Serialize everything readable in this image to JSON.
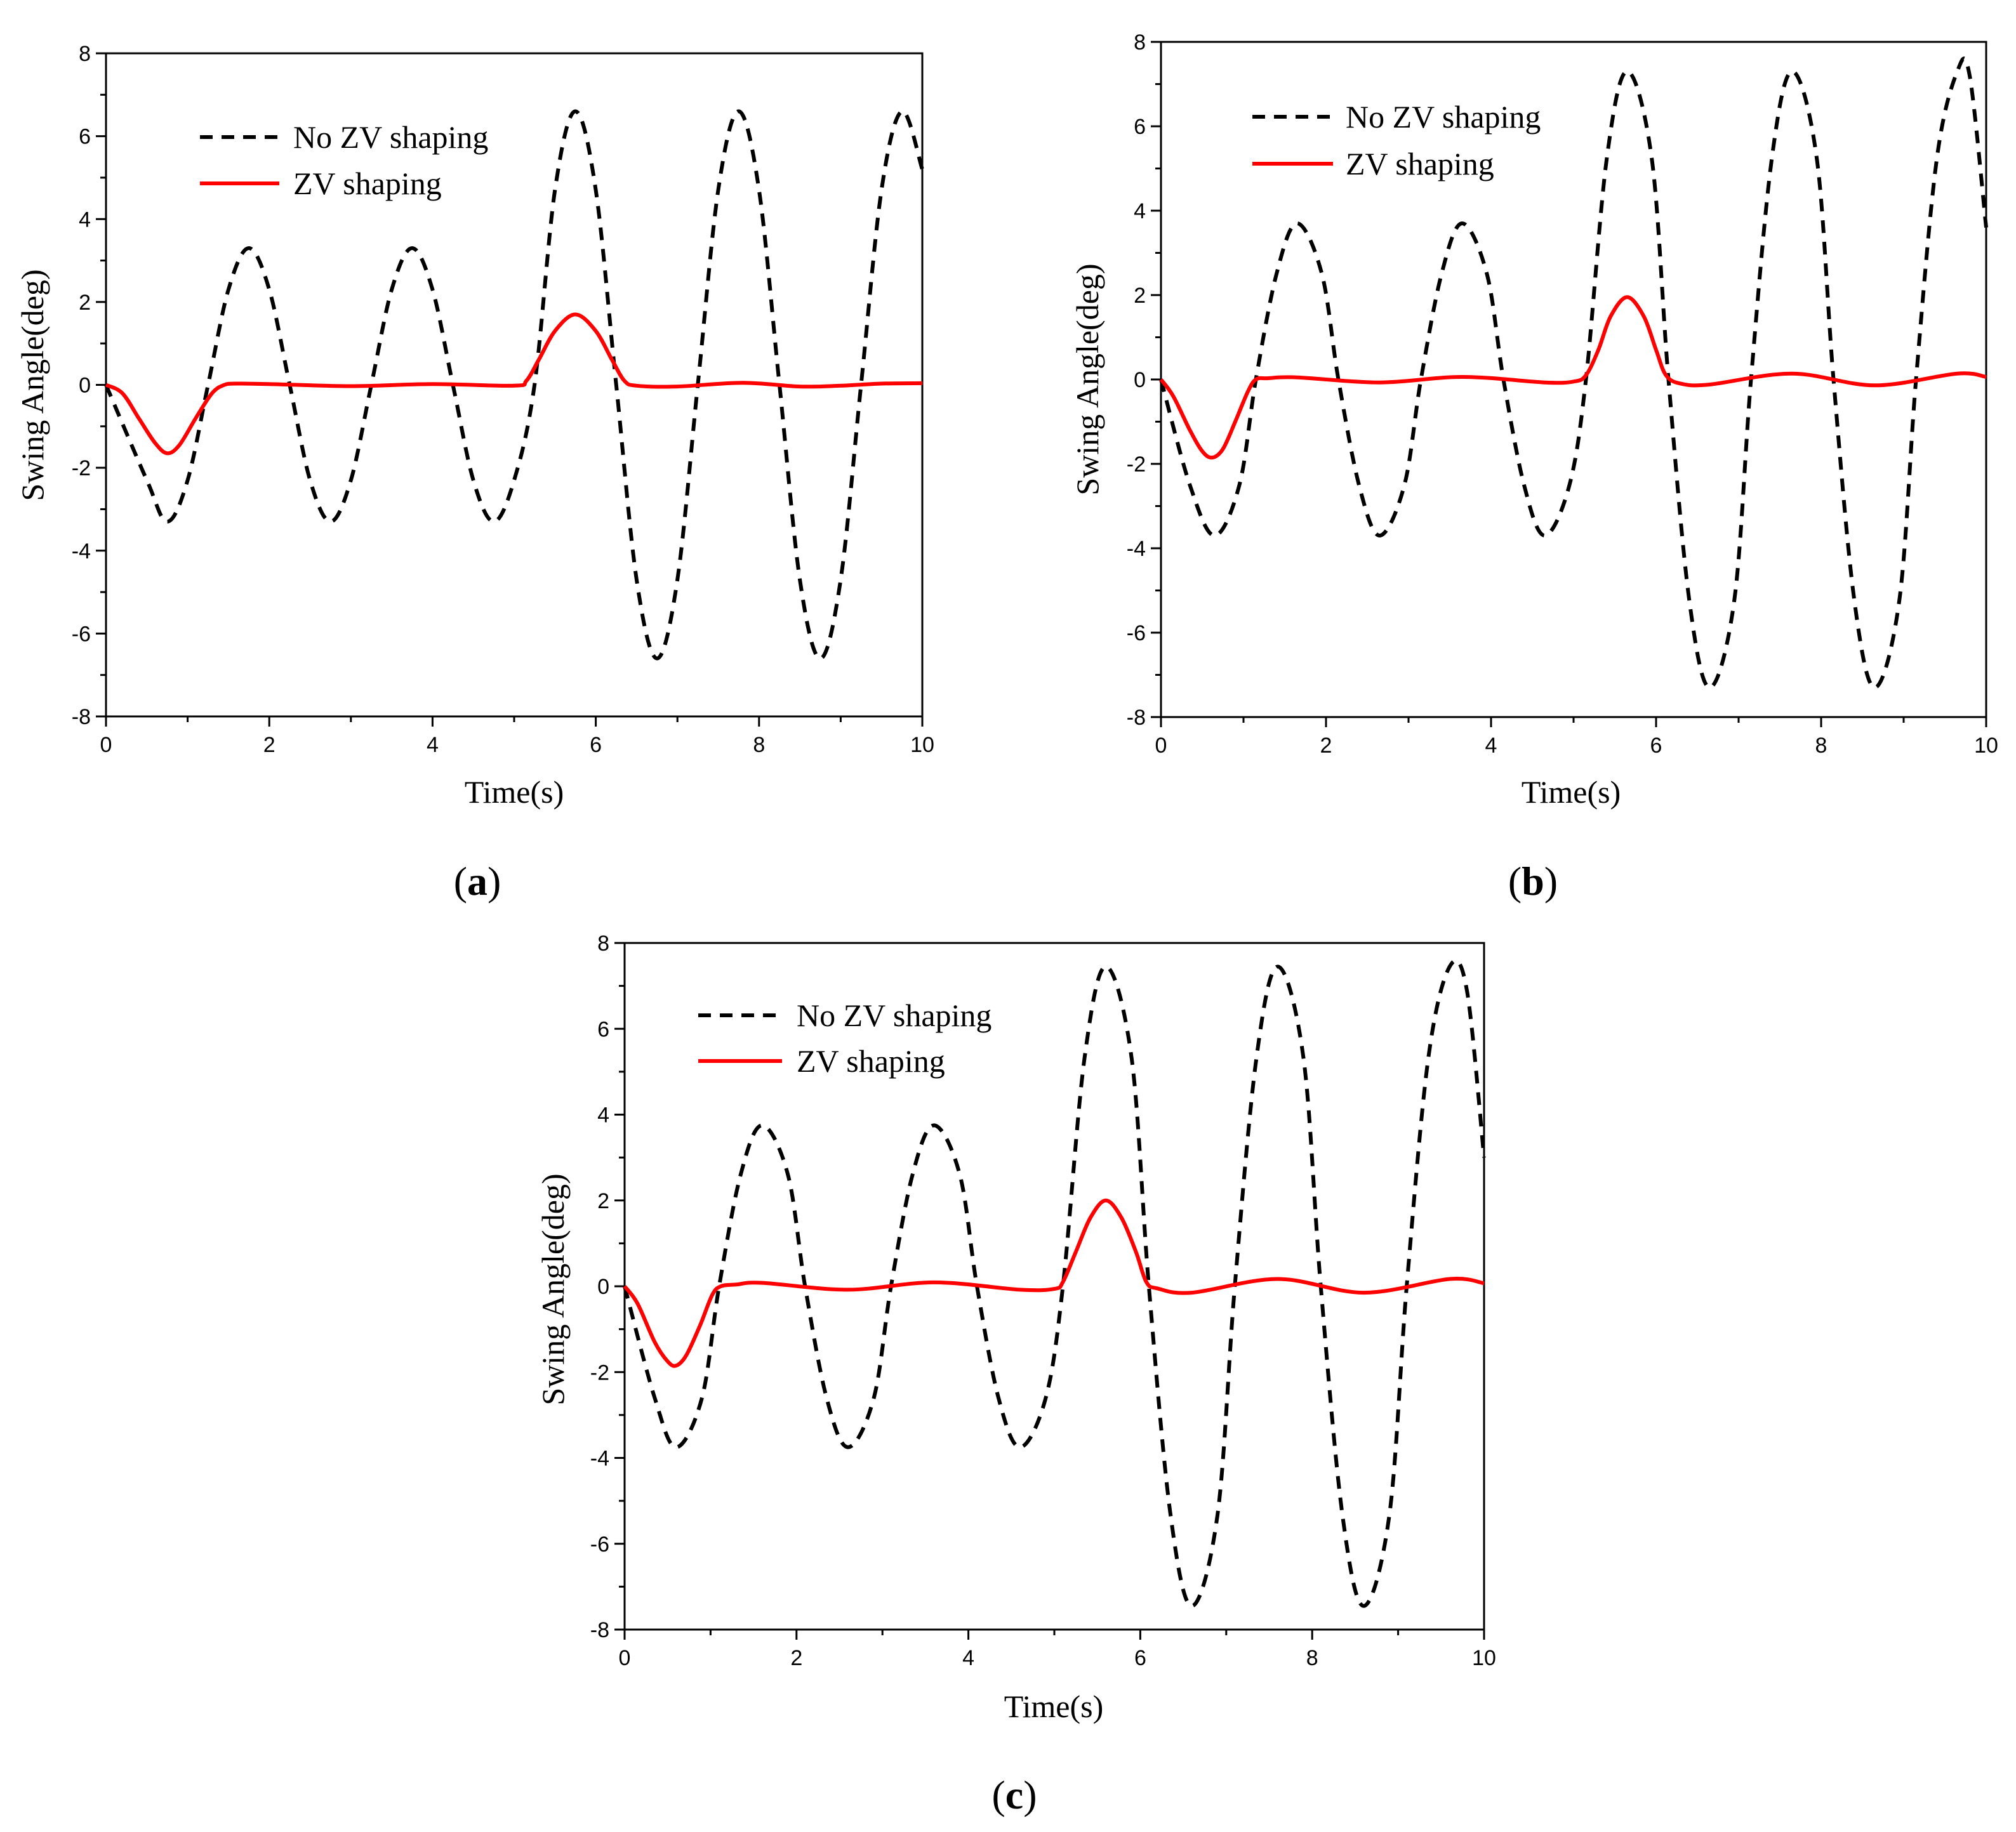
{
  "figure": {
    "panel_labels": [
      {
        "open": "(",
        "letter": "a",
        "close": ")"
      },
      {
        "open": "(",
        "letter": "b",
        "close": ")"
      },
      {
        "open": "(",
        "letter": "c",
        "close": ")"
      }
    ]
  },
  "colors": {
    "no_zv": "#000000",
    "zv": "#ff0000",
    "axis": "#000000"
  },
  "chart_data": [
    {
      "type": "line",
      "id": "a",
      "xlabel": "Time(s)",
      "ylabel": "Swing Angle(deg)",
      "xlim": [
        0,
        10
      ],
      "ylim": [
        -8,
        8
      ],
      "xticks": [
        0,
        2,
        4,
        6,
        8,
        10
      ],
      "yticks": [
        -8,
        -6,
        -4,
        -2,
        0,
        2,
        4,
        6,
        8
      ],
      "legend_position": "top-left",
      "series": [
        {
          "name": "No ZV shaping",
          "style": "dashed",
          "color": "#000000",
          "x": [
            0,
            0.5,
            0.75,
            1.0,
            1.25,
            1.5,
            1.75,
            2.0,
            2.25,
            2.5,
            2.75,
            3.0,
            3.25,
            3.5,
            3.75,
            4.0,
            4.25,
            4.5,
            4.75,
            5.0,
            5.25,
            5.5,
            5.75,
            6.0,
            6.25,
            6.5,
            6.75,
            7.0,
            7.25,
            7.5,
            7.75,
            8.0,
            8.25,
            8.5,
            8.75,
            9.0,
            9.25,
            9.5,
            9.75,
            10.0
          ],
          "y": [
            0,
            -2.3,
            -3.3,
            -2.3,
            0,
            2.3,
            3.3,
            2.3,
            0,
            -2.3,
            -3.3,
            -2.3,
            0,
            2.3,
            3.3,
            2.3,
            0,
            -2.3,
            -3.3,
            -2.3,
            0,
            4.7,
            6.6,
            4.7,
            0,
            -4.7,
            -6.6,
            -4.7,
            0,
            4.7,
            6.6,
            4.7,
            0,
            -4.7,
            -6.6,
            -4.7,
            0,
            4.7,
            6.6,
            5.2
          ]
        },
        {
          "name": "ZV shaping",
          "style": "solid",
          "color": "#ff0000",
          "x": [
            0,
            0.2,
            0.4,
            0.6,
            0.75,
            0.9,
            1.1,
            1.3,
            1.45,
            1.6,
            2.0,
            3.0,
            4.0,
            5.0,
            5.15,
            5.3,
            5.5,
            5.75,
            6.0,
            6.2,
            6.35,
            6.5,
            7.0,
            7.8,
            8.5,
            9.0,
            9.5,
            10.0
          ],
          "y": [
            0,
            -0.2,
            -0.8,
            -1.4,
            -1.65,
            -1.45,
            -0.8,
            -0.2,
            0,
            0.03,
            0.02,
            -0.03,
            0.02,
            -0.02,
            0.1,
            0.6,
            1.3,
            1.7,
            1.3,
            0.6,
            0.1,
            -0.02,
            -0.04,
            0.05,
            -0.04,
            -0.02,
            0.03,
            0.04
          ]
        }
      ]
    },
    {
      "type": "line",
      "id": "b",
      "xlabel": "Time(s)",
      "ylabel": "Swing Angle(deg)",
      "xlim": [
        0,
        10
      ],
      "ylim": [
        -8,
        8
      ],
      "xticks": [
        0,
        2,
        4,
        6,
        8,
        10
      ],
      "yticks": [
        -8,
        -6,
        -4,
        -2,
        0,
        2,
        4,
        6,
        8
      ],
      "legend_position": "top-left",
      "series": [
        {
          "name": "No ZV shaping",
          "style": "dashed",
          "color": "#000000",
          "x": [
            0,
            0.35,
            0.65,
            0.95,
            1.15,
            1.4,
            1.65,
            1.95,
            2.15,
            2.4,
            2.65,
            2.95,
            3.15,
            3.4,
            3.65,
            3.95,
            4.15,
            4.4,
            4.65,
            4.95,
            5.15,
            5.4,
            5.65,
            5.95,
            6.15,
            6.4,
            6.65,
            6.95,
            7.15,
            7.4,
            7.65,
            7.95,
            8.15,
            8.4,
            8.65,
            8.95,
            9.15,
            9.4,
            9.65,
            9.8,
            10.0
          ],
          "y": [
            0,
            -2.5,
            -3.7,
            -2.5,
            0,
            2.5,
            3.7,
            2.5,
            0,
            -2.5,
            -3.7,
            -2.5,
            0,
            2.5,
            3.7,
            2.5,
            0,
            -2.5,
            -3.7,
            -2.5,
            0,
            5.2,
            7.3,
            5.2,
            0,
            -5.2,
            -7.3,
            -5.2,
            0,
            5.2,
            7.3,
            5.2,
            0,
            -5.2,
            -7.3,
            -5.2,
            0,
            5.2,
            7.3,
            7.2,
            3.6
          ]
        },
        {
          "name": "ZV shaping",
          "style": "solid",
          "color": "#ff0000",
          "x": [
            0,
            0.15,
            0.35,
            0.5,
            0.62,
            0.75,
            0.9,
            1.05,
            1.15,
            1.3,
            1.65,
            2.65,
            3.65,
            4.65,
            5.0,
            5.15,
            5.3,
            5.45,
            5.65,
            5.85,
            6.0,
            6.12,
            6.3,
            6.65,
            7.65,
            8.65,
            9.65,
            10.0
          ],
          "y": [
            0,
            -0.4,
            -1.2,
            -1.7,
            -1.85,
            -1.65,
            -1.0,
            -0.3,
            0,
            0.03,
            0.05,
            -0.07,
            0.06,
            -0.07,
            -0.05,
            0.1,
            0.7,
            1.5,
            1.95,
            1.5,
            0.7,
            0.1,
            -0.1,
            -0.12,
            0.14,
            -0.14,
            0.14,
            0.06
          ]
        }
      ]
    },
    {
      "type": "line",
      "id": "c",
      "xlabel": "Time(s)",
      "ylabel": "Swing Angle(deg)",
      "xlim": [
        0,
        10
      ],
      "ylim": [
        -8,
        8
      ],
      "xticks": [
        0,
        2,
        4,
        6,
        8,
        10
      ],
      "yticks": [
        -8,
        -6,
        -4,
        -2,
        0,
        2,
        4,
        6,
        8
      ],
      "legend_position": "top-left",
      "series": [
        {
          "name": "No ZV shaping",
          "style": "dashed",
          "color": "#000000",
          "x": [
            0,
            0.35,
            0.6,
            0.9,
            1.1,
            1.35,
            1.6,
            1.9,
            2.1,
            2.35,
            2.6,
            2.9,
            3.1,
            3.35,
            3.6,
            3.9,
            4.1,
            4.35,
            4.6,
            4.9,
            5.1,
            5.35,
            5.6,
            5.9,
            6.1,
            6.35,
            6.6,
            6.9,
            7.1,
            7.35,
            7.6,
            7.9,
            8.1,
            8.35,
            8.6,
            8.9,
            9.1,
            9.35,
            9.6,
            9.8,
            10.0
          ],
          "y": [
            0,
            -2.6,
            -3.75,
            -2.6,
            0,
            2.6,
            3.75,
            2.6,
            0,
            -2.6,
            -3.75,
            -2.6,
            0,
            2.6,
            3.75,
            2.6,
            0,
            -2.6,
            -3.75,
            -2.6,
            0,
            5.3,
            7.45,
            5.3,
            0,
            -5.3,
            -7.45,
            -5.3,
            0,
            5.3,
            7.45,
            5.3,
            0,
            -5.3,
            -7.45,
            -5.3,
            0,
            5.3,
            7.45,
            6.9,
            3.0
          ]
        },
        {
          "name": "ZV shaping",
          "style": "solid",
          "color": "#ff0000",
          "x": [
            0,
            0.15,
            0.35,
            0.5,
            0.6,
            0.72,
            0.88,
            1.02,
            1.12,
            1.3,
            1.6,
            2.6,
            3.6,
            4.6,
            5.0,
            5.1,
            5.25,
            5.42,
            5.6,
            5.78,
            5.95,
            6.07,
            6.2,
            6.6,
            7.6,
            8.6,
            9.6,
            10.0
          ],
          "y": [
            0,
            -0.4,
            -1.3,
            -1.75,
            -1.85,
            -1.6,
            -0.9,
            -0.2,
            0,
            0.04,
            0.08,
            -0.08,
            0.09,
            -0.08,
            -0.06,
            0.1,
            0.8,
            1.6,
            2.0,
            1.6,
            0.8,
            0.1,
            -0.05,
            -0.15,
            0.17,
            -0.15,
            0.17,
            0.07
          ]
        }
      ]
    }
  ]
}
